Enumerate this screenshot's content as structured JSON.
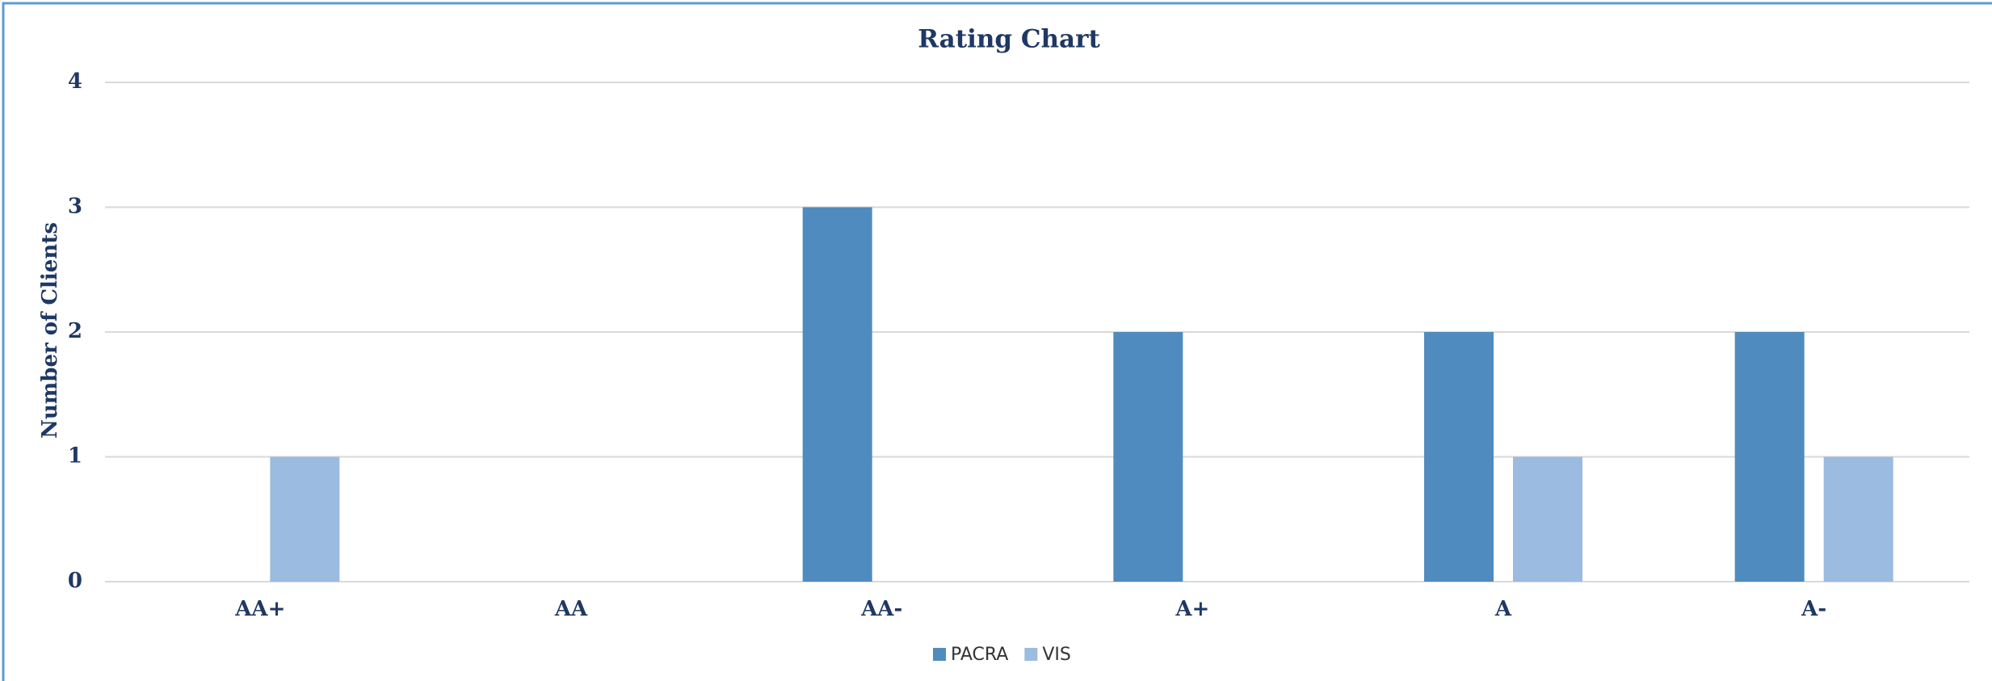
{
  "chart_data": {
    "type": "bar",
    "title": "Rating Chart",
    "y_label": "Number of Clients",
    "categories": [
      "AA+",
      "AA",
      "AA-",
      "A+",
      "A",
      "A-"
    ],
    "series": [
      {
        "name": "PACRA",
        "color": "#4f8bbe",
        "values": [
          0,
          0,
          3,
          2,
          2,
          2
        ]
      },
      {
        "name": "VIS",
        "color": "#9bbbe0",
        "values": [
          1,
          0,
          0,
          0,
          1,
          1
        ]
      }
    ],
    "ylim": [
      0,
      4
    ],
    "yticks": [
      0,
      1,
      2,
      3,
      4
    ],
    "grid": true,
    "legend": "bottom"
  }
}
